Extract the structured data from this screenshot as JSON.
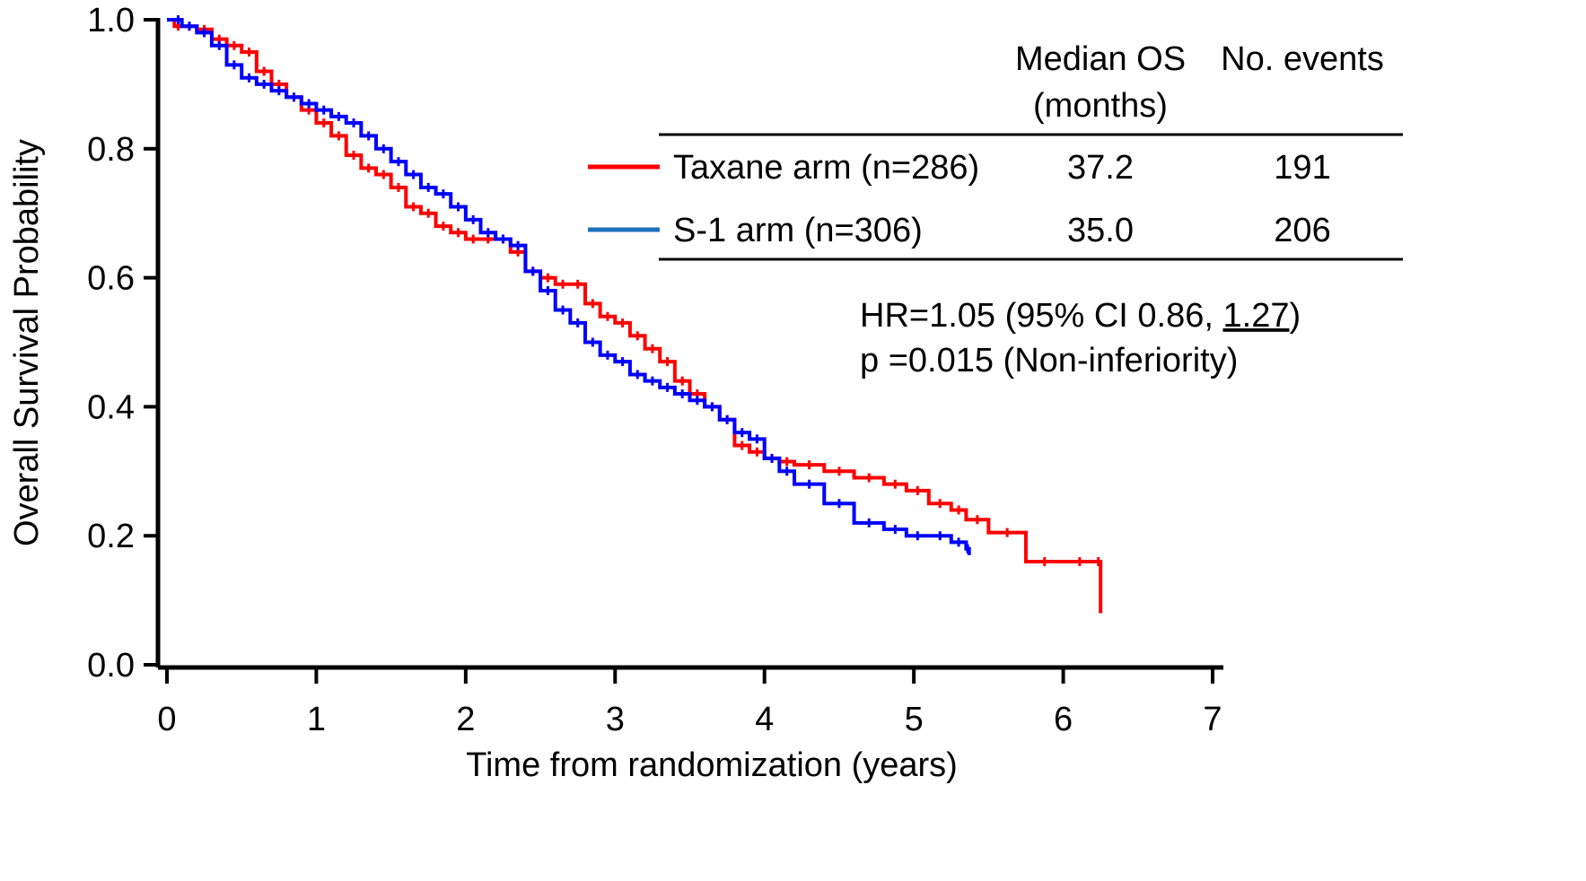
{
  "chart_data": {
    "type": "line",
    "title": "",
    "xlabel": "Time from randomization (years)",
    "ylabel": "Overall Survival Probability",
    "xlim": [
      0,
      7
    ],
    "ylim": [
      0,
      1.0
    ],
    "x_ticks": [
      "0",
      "1",
      "2",
      "3",
      "4",
      "5",
      "6",
      "7"
    ],
    "y_ticks": [
      "0.0",
      "0.2",
      "0.4",
      "0.6",
      "0.8",
      "1.0"
    ],
    "grid": false,
    "legend_position": "top-right",
    "series": [
      {
        "name": "Taxane arm (n=286)",
        "color": "#ff0000",
        "step": true,
        "x": [
          0,
          0.05,
          0.1,
          0.2,
          0.3,
          0.4,
          0.5,
          0.6,
          0.7,
          0.8,
          0.9,
          1.0,
          1.1,
          1.2,
          1.3,
          1.4,
          1.5,
          1.6,
          1.7,
          1.8,
          1.9,
          2.0,
          2.1,
          2.2,
          2.3,
          2.4,
          2.5,
          2.6,
          2.7,
          2.8,
          2.9,
          3.0,
          3.1,
          3.2,
          3.3,
          3.4,
          3.5,
          3.6,
          3.7,
          3.8,
          3.9,
          4.0,
          4.1,
          4.2,
          4.4,
          4.6,
          4.8,
          4.95,
          5.1,
          5.25,
          5.35,
          5.5,
          5.75,
          6.0,
          6.22,
          6.25
        ],
        "y": [
          1.0,
          0.99,
          0.99,
          0.985,
          0.97,
          0.96,
          0.95,
          0.92,
          0.9,
          0.88,
          0.86,
          0.84,
          0.82,
          0.79,
          0.77,
          0.76,
          0.74,
          0.71,
          0.7,
          0.68,
          0.67,
          0.66,
          0.66,
          0.66,
          0.64,
          0.61,
          0.6,
          0.59,
          0.59,
          0.56,
          0.54,
          0.53,
          0.51,
          0.49,
          0.47,
          0.44,
          0.42,
          0.4,
          0.38,
          0.34,
          0.33,
          0.32,
          0.315,
          0.31,
          0.3,
          0.29,
          0.28,
          0.27,
          0.25,
          0.24,
          0.225,
          0.205,
          0.16,
          0.16,
          0.16,
          0.08
        ]
      },
      {
        "name": "S-1 arm (n=306)",
        "color": "#0000ff",
        "step": true,
        "x": [
          0,
          0.05,
          0.1,
          0.2,
          0.3,
          0.4,
          0.5,
          0.6,
          0.7,
          0.8,
          0.9,
          1.0,
          1.1,
          1.2,
          1.3,
          1.4,
          1.5,
          1.6,
          1.7,
          1.8,
          1.9,
          2.0,
          2.1,
          2.2,
          2.3,
          2.4,
          2.5,
          2.6,
          2.7,
          2.8,
          2.9,
          3.0,
          3.1,
          3.2,
          3.3,
          3.4,
          3.5,
          3.6,
          3.7,
          3.8,
          3.9,
          4.0,
          4.1,
          4.2,
          4.4,
          4.6,
          4.8,
          4.95,
          5.1,
          5.25,
          5.35,
          5.37
        ],
        "y": [
          1.0,
          1.0,
          0.99,
          0.98,
          0.96,
          0.93,
          0.91,
          0.9,
          0.89,
          0.88,
          0.87,
          0.86,
          0.85,
          0.84,
          0.82,
          0.8,
          0.78,
          0.76,
          0.74,
          0.73,
          0.71,
          0.69,
          0.67,
          0.66,
          0.65,
          0.61,
          0.58,
          0.55,
          0.53,
          0.5,
          0.48,
          0.47,
          0.45,
          0.44,
          0.43,
          0.42,
          0.41,
          0.4,
          0.38,
          0.36,
          0.35,
          0.32,
          0.3,
          0.28,
          0.25,
          0.22,
          0.21,
          0.2,
          0.2,
          0.19,
          0.18,
          0.17
        ]
      }
    ],
    "summary_table": {
      "headers": [
        "Median OS",
        "(months)",
        "No. events"
      ],
      "rows": [
        {
          "label": "Taxane arm (n=286)",
          "median": "37.2",
          "events": "191",
          "color": "#ff0000"
        },
        {
          "label": "S-1 arm (n=306)",
          "median": "35.0",
          "events": "206",
          "color": "#1f6fbf"
        }
      ]
    },
    "annotations": {
      "hr_prefix": "HR=1.05 (95% CI 0.86, ",
      "hr_upper": "1.27",
      "hr_suffix": ")",
      "pvalue": "p =0.015 (Non-inferiority)"
    }
  }
}
